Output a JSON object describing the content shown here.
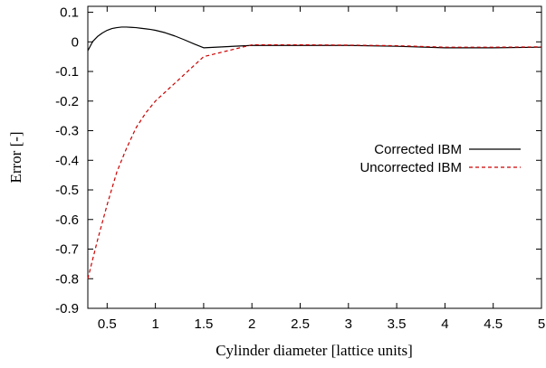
{
  "chart_data": {
    "type": "line",
    "title": "",
    "xlabel": "Cylinder diameter [lattice units]",
    "ylabel": "Error [-]",
    "xlim": [
      0.3,
      5
    ],
    "ylim": [
      -0.9,
      0.12
    ],
    "xticks": [
      "0.5",
      "1",
      "1.5",
      "2",
      "2.5",
      "3",
      "3.5",
      "4",
      "4.5",
      "5"
    ],
    "yticks": [
      "0.1",
      "0",
      "-0.1",
      "-0.2",
      "-0.3",
      "-0.4",
      "-0.5",
      "-0.6",
      "-0.7",
      "-0.8",
      "-0.9"
    ],
    "grid": false,
    "legend_position": "right-middle",
    "series": [
      {
        "name": "Corrected IBM",
        "color": "#000000",
        "dash": "solid",
        "x": [
          0.3,
          0.35,
          0.4,
          0.45,
          0.5,
          0.55,
          0.6,
          0.65,
          0.7,
          0.75,
          0.8,
          0.85,
          0.9,
          0.95,
          1.0,
          1.1,
          1.2,
          1.3,
          1.4,
          1.5,
          2.0,
          2.5,
          3.0,
          3.5,
          4.0,
          4.5,
          5.0
        ],
        "y": [
          -0.03,
          0.001,
          0.018,
          0.03,
          0.039,
          0.045,
          0.048,
          0.05,
          0.05,
          0.049,
          0.048,
          0.046,
          0.044,
          0.042,
          0.039,
          0.031,
          0.02,
          0.007,
          -0.007,
          -0.02,
          -0.012,
          -0.012,
          -0.012,
          -0.015,
          -0.02,
          -0.02,
          -0.018
        ]
      },
      {
        "name": "Uncorrected IBM",
        "color": "#cc0000",
        "dash": "dashed",
        "x": [
          0.3,
          0.4,
          0.5,
          0.6,
          0.7,
          0.8,
          0.9,
          1.0,
          1.5,
          2.0,
          2.5,
          3.0,
          3.5,
          4.0,
          4.5,
          5.0
        ],
        "y": [
          -0.8,
          -0.67,
          -0.55,
          -0.44,
          -0.36,
          -0.29,
          -0.24,
          -0.2,
          -0.05,
          -0.01,
          -0.01,
          -0.011,
          -0.013,
          -0.018,
          -0.018,
          -0.017
        ]
      }
    ]
  }
}
